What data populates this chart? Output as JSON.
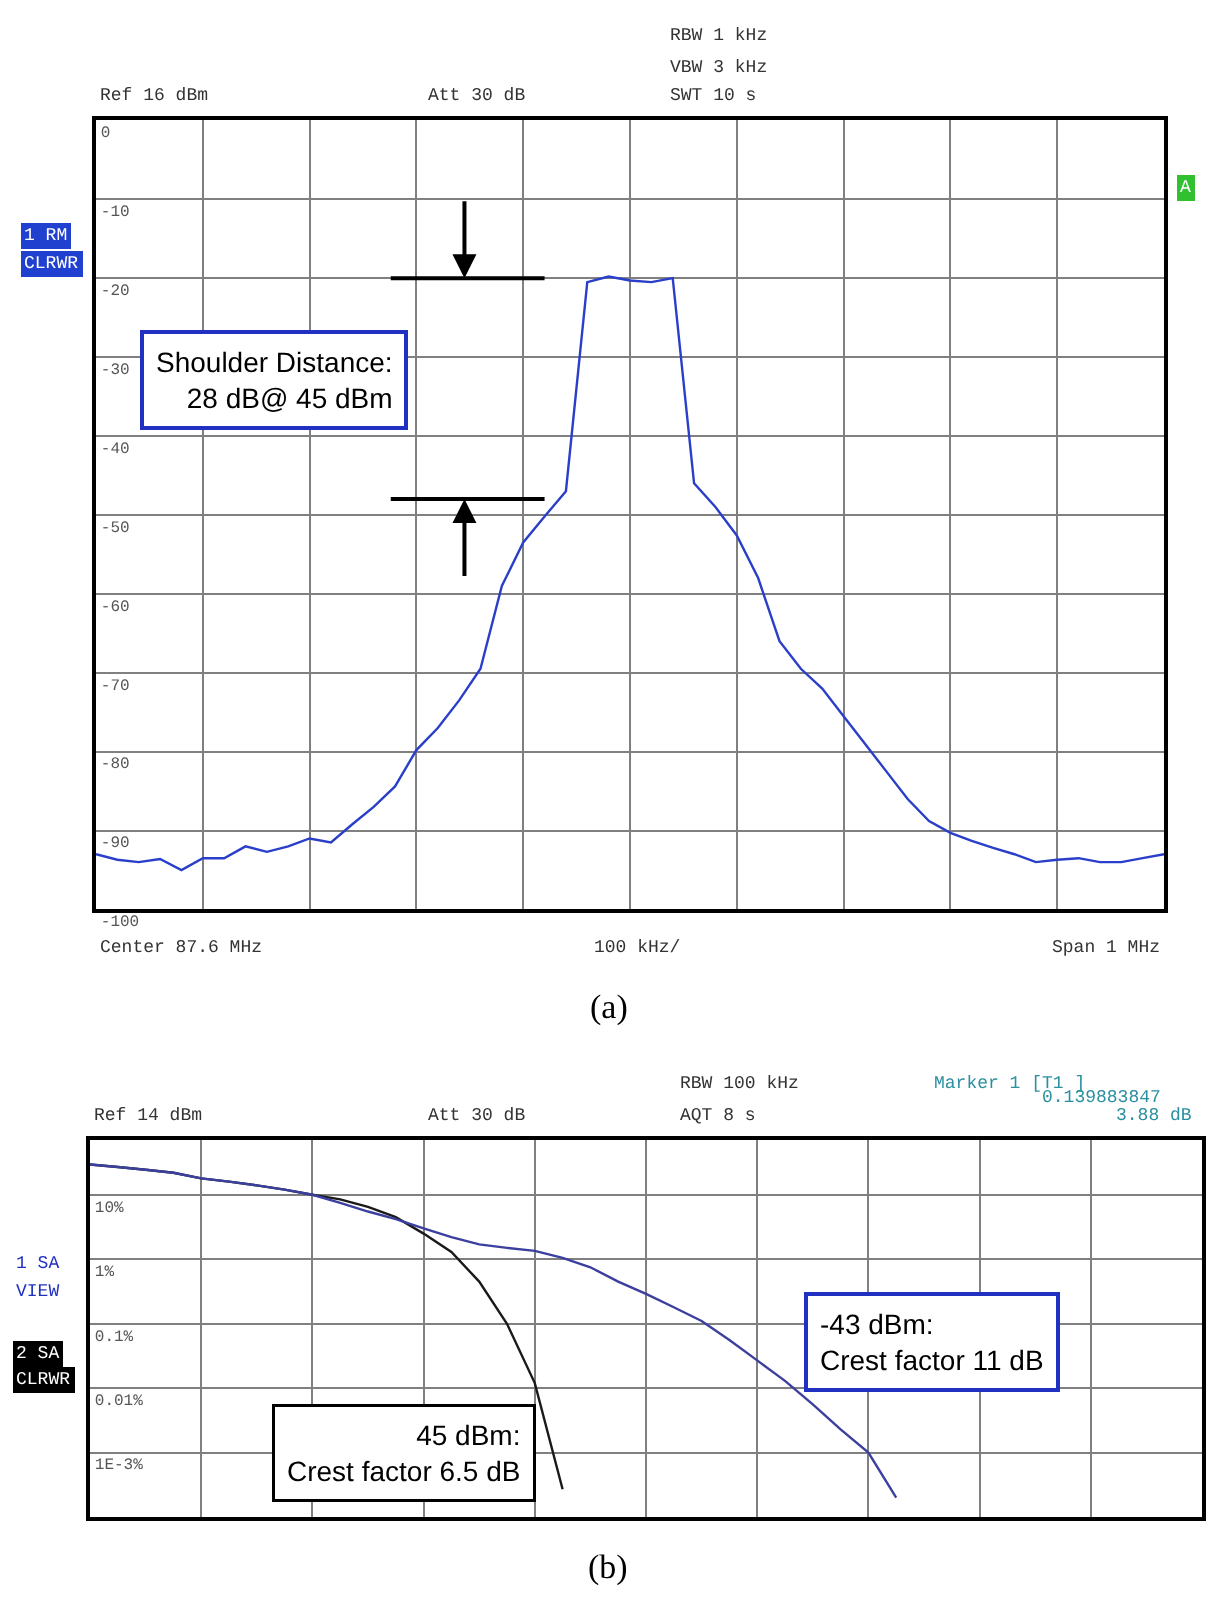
{
  "chart_data": [
    {
      "type": "line",
      "color": "#2a3fc9",
      "categories": [
        null,
        null,
        null,
        null,
        null,
        null,
        null,
        null,
        null,
        null,
        null,
        null,
        null,
        null,
        null,
        null,
        null,
        null,
        null,
        null,
        null,
        null,
        null,
        null,
        null,
        null,
        null,
        null,
        null,
        null,
        null,
        null,
        null,
        null,
        null,
        null,
        null,
        null,
        null,
        null,
        null,
        null,
        null,
        null,
        null,
        null,
        null,
        null,
        null,
        null,
        null
      ],
      "values": [
        -93,
        -93.7,
        -94,
        -93.6,
        -95,
        -93.5,
        -93.5,
        -92,
        -92.7,
        -92,
        -91,
        -91.5,
        -89.2,
        -87,
        -84.4,
        -79.8,
        -77,
        -73.5,
        -69.5,
        -59,
        -53.5,
        -50.2,
        -47,
        -20.5,
        -19.8,
        -20.3,
        -20.5,
        -20,
        -46,
        -49,
        -52.6,
        -58,
        -66,
        -69.5,
        -72,
        -75.5,
        -79,
        -82.5,
        -86,
        -88.8,
        -90.3,
        -91.3,
        -92.2,
        -93,
        -94,
        -93.7,
        -93.5,
        -94,
        -94,
        -93.5,
        -93
      ],
      "ylim": [
        -100,
        0
      ],
      "yticks": [
        0,
        -10,
        -20,
        -30,
        -40,
        -50,
        -60,
        -70,
        -80,
        -90,
        -100
      ],
      "tick_labels": "y",
      "grid": true,
      "ref_lines": [
        {
          "axis": "y",
          "value": -20,
          "color": "#000000"
        },
        {
          "axis": "y",
          "value": -48,
          "color": "#000000"
        }
      ],
      "annotations": [
        "Ref 16 dBm",
        "Att 30 dB",
        "RBW 1 kHz",
        "VBW 3 kHz",
        "SWT 10 s",
        "1 RM",
        "CLRWR",
        "A",
        "Shoulder Distance:\n28 dB@ 45 dBm",
        "Center 87.6 MHz",
        "100 kHz/",
        "Span 1 MHz",
        "(a)"
      ]
    },
    {
      "type": "line",
      "log": "y",
      "categories": [
        null,
        null,
        null,
        null,
        null,
        null,
        null,
        null,
        null,
        null,
        null,
        null,
        null,
        null,
        null,
        null,
        null,
        null,
        null,
        null,
        null,
        null,
        null,
        null,
        null,
        null,
        null,
        null,
        null,
        null,
        null,
        null,
        null,
        null,
        null,
        null,
        null,
        null,
        null,
        null,
        null
      ],
      "series": [
        {
          "color": "#1a1a1a",
          "values": [
            29.5,
            27,
            24.5,
            22,
            18,
            16,
            14,
            12,
            10,
            8.5,
            6.5,
            4.5,
            2.5,
            1.3,
            0.45,
            0.1,
            0.012,
            0.00027,
            null,
            null,
            null,
            null,
            null,
            null,
            null,
            null,
            null,
            null,
            null,
            null,
            null,
            null,
            null,
            null,
            null,
            null,
            null,
            null,
            null,
            null,
            null
          ]
        },
        {
          "color": "#3b3f9e",
          "values": [
            29.5,
            27,
            24.5,
            22,
            18,
            16,
            14,
            12,
            10,
            7.5,
            5.5,
            4.2,
            3.0,
            2.2,
            1.7,
            1.5,
            1.35,
            1.05,
            0.75,
            0.45,
            0.29,
            0.18,
            0.11,
            0.056,
            0.027,
            0.013,
            0.0056,
            0.0023,
            0.001,
            0.0002,
            null,
            null,
            null,
            null,
            null,
            null,
            null,
            null,
            null,
            null,
            null
          ]
        }
      ],
      "ylim": [
        0.0001,
        70
      ],
      "yticks": [
        {
          "value": 10,
          "label": "10%"
        },
        {
          "value": 1,
          "label": "1%"
        },
        {
          "value": 0.1,
          "label": "0.1%"
        },
        {
          "value": 0.01,
          "label": "0.01%"
        },
        {
          "value": 0.001,
          "label": "1E-3%"
        }
      ],
      "tick_labels": "y",
      "grid": true,
      "annotations": [
        "Ref 14 dBm",
        "Att 30 dB",
        "RBW 100 kHz",
        "AQT 8 s",
        "Marker 1 [T1 ]",
        "0.139883847",
        "3.88 dB",
        "1 SA",
        "VIEW",
        "2 SA",
        "CLRWR",
        "-43 dBm:\nCrest factor 11 dB",
        "45 dBm:\nCrest factor 6.5 dB",
        "(b)"
      ]
    }
  ]
}
